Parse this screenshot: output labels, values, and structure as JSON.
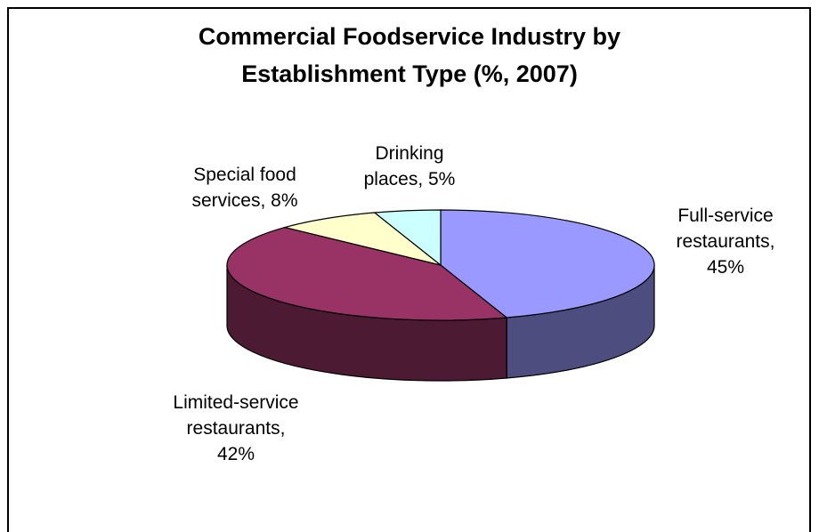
{
  "chart_data": {
    "type": "pie",
    "title_lines": [
      "Commercial Foodservice Industry by",
      "Establishment Type (%, 2007)"
    ],
    "slices": [
      {
        "label": "Full-service restaurants, 45%",
        "value": 45,
        "color": "#9999ff",
        "side_color": "#4d4d80"
      },
      {
        "label": "Limited-service restaurants, 42%",
        "value": 42,
        "color": "#993366",
        "side_color": "#4d1a33"
      },
      {
        "label": "Special food services, 8%",
        "value": 8,
        "color": "#ffffcc",
        "side_color": "#808066"
      },
      {
        "label": "Drinking places, 5%",
        "value": 5,
        "color": "#ccffff",
        "side_color": "#668080"
      }
    ],
    "legend": "none",
    "style": "3d"
  },
  "labels": {
    "full_service": "Full-service\nrestaurants,\n45%",
    "limited_service": "Limited-service\nrestaurants,\n42%",
    "special_food": "Special food\nservices, 8%",
    "drinking": "Drinking\nplaces, 5%"
  }
}
